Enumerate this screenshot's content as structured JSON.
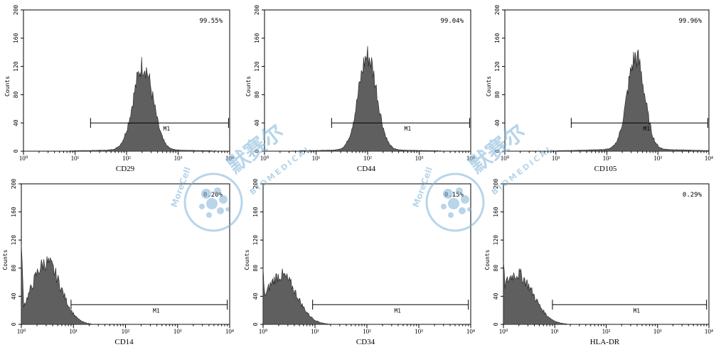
{
  "colors": {
    "histogram_fill": "#5f5f5f",
    "axis": "#000000",
    "watermark": "#7fb3d8"
  },
  "watermark": {
    "brand_en": "MoreCell",
    "brand_cn": "默赛尔",
    "tagline": "BIOMEDICAL"
  },
  "chart_data": [
    {
      "type": "area",
      "marker": "CD29",
      "ylabel": "Counts",
      "percent_label": "99.55%",
      "gate_label": "M1",
      "ylim": [
        0,
        200
      ],
      "yticks": [
        "0",
        "40",
        "80",
        "120",
        "160",
        "200"
      ],
      "xscale": "log",
      "xlim": [
        1,
        10000
      ],
      "xticks": [
        "10⁰",
        "10¹",
        "10²",
        "10³",
        "10⁴"
      ],
      "gate_range": [
        20,
        9500
      ],
      "peak_x": 210,
      "peak_y": 120,
      "log_width": 0.19,
      "baseline": 2
    },
    {
      "type": "area",
      "marker": "CD44",
      "ylabel": "Counts",
      "percent_label": "99.04%",
      "gate_label": "M1",
      "ylim": [
        0,
        200
      ],
      "yticks": [
        "0",
        "40",
        "80",
        "120",
        "160",
        "200"
      ],
      "xscale": "log",
      "xlim": [
        1,
        10000
      ],
      "xticks": [
        "10⁰",
        "10¹",
        "10²",
        "10³",
        "10⁴"
      ],
      "gate_range": [
        20,
        9500
      ],
      "peak_x": 100,
      "peak_y": 133,
      "log_width": 0.18,
      "baseline": 2
    },
    {
      "type": "area",
      "marker": "CD105",
      "ylabel": "Counts",
      "percent_label": "99.96%",
      "gate_label": "M1",
      "ylim": [
        0,
        200
      ],
      "yticks": [
        "0",
        "40",
        "80",
        "120",
        "160",
        "200"
      ],
      "xscale": "log",
      "xlim": [
        1,
        10000
      ],
      "xticks": [
        "10⁰",
        "10¹",
        "10²",
        "10³",
        "10⁴"
      ],
      "gate_range": [
        20,
        9500
      ],
      "peak_x": 370,
      "peak_y": 130,
      "log_width": 0.17,
      "baseline": 3
    },
    {
      "type": "area",
      "marker": "CD14",
      "ylabel": "Counts",
      "percent_label": "0.20%",
      "gate_label": "M1",
      "ylim": [
        0,
        200
      ],
      "yticks": [
        "0",
        "40",
        "80",
        "120",
        "160",
        "200"
      ],
      "xscale": "log",
      "xlim": [
        1,
        10000
      ],
      "xticks": [
        "10⁰",
        "10¹",
        "10²",
        "10³",
        "10⁴"
      ],
      "gate_range": [
        9,
        9000
      ],
      "peak_x": 3,
      "peak_y": 88,
      "log_width": 0.28,
      "baseline": 0,
      "edge_spike": 110
    },
    {
      "type": "area",
      "marker": "CD34",
      "ylabel": "Counts",
      "percent_label": "0.15%",
      "gate_label": "M1",
      "ylim": [
        0,
        200
      ],
      "yticks": [
        "0",
        "40",
        "80",
        "120",
        "160",
        "200"
      ],
      "xscale": "log",
      "xlim": [
        1,
        10000
      ],
      "xticks": [
        "10⁰",
        "10¹",
        "10²",
        "10³",
        "10⁴"
      ],
      "gate_range": [
        9,
        9000
      ],
      "peak_x": 2.2,
      "peak_y": 70,
      "log_width": 0.3,
      "baseline": 0,
      "edge_spike": 75
    },
    {
      "type": "area",
      "marker": "HLA-DR",
      "ylabel": "Counts",
      "percent_label": "0.29%",
      "gate_label": "M1",
      "ylim": [
        0,
        200
      ],
      "yticks": [
        "0",
        "40",
        "80",
        "120",
        "160",
        "200"
      ],
      "xscale": "log",
      "xlim": [
        1,
        10000
      ],
      "xticks": [
        "10⁰",
        "10¹",
        "10²",
        "10³",
        "10⁴"
      ],
      "gate_range": [
        9,
        9000
      ],
      "peak_x": 1.8,
      "peak_y": 72,
      "log_width": 0.32,
      "baseline": 0,
      "edge_spike": 90
    }
  ]
}
